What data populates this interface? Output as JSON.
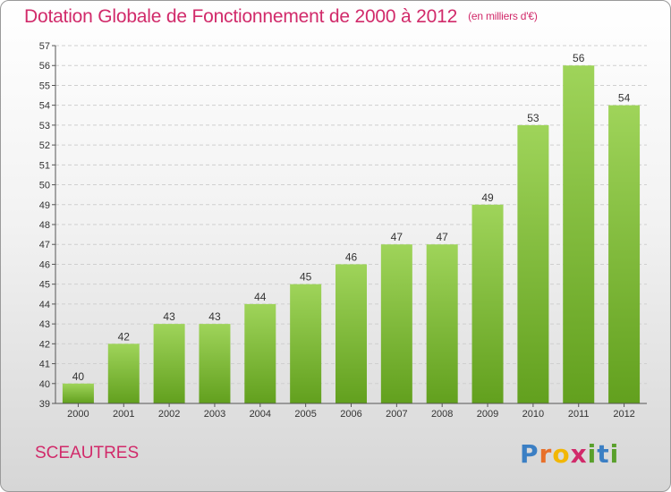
{
  "header": {
    "title": "Dotation Globale de Fonctionnement de 2000 à 2012",
    "unit": "(en milliers d'€)"
  },
  "footer": {
    "commune": "SCEAUTRES",
    "logo": [
      "P",
      "r",
      "o",
      "x",
      "i",
      "t",
      "i"
    ],
    "logo_colors": [
      "#3b7fc4",
      "#e8702a",
      "#f2b705",
      "#d12a6a",
      "#5aa02c",
      "#3b7fc4",
      "#5aa02c"
    ]
  },
  "colors": {
    "bar_top": "#9fd45a",
    "bar_bottom": "#62a01e",
    "grid": "#cfcfcf",
    "axis": "#555555"
  },
  "chart_data": {
    "type": "bar",
    "title": "Dotation Globale de Fonctionnement de 2000 à 2012",
    "xlabel": "",
    "ylabel": "(en milliers d'€)",
    "categories": [
      "2000",
      "2001",
      "2002",
      "2003",
      "2004",
      "2005",
      "2006",
      "2007",
      "2008",
      "2009",
      "2010",
      "2011",
      "2012"
    ],
    "values": [
      40,
      42,
      43,
      43,
      44,
      45,
      46,
      47,
      47,
      49,
      53,
      56,
      54
    ],
    "ylim": [
      39,
      57
    ],
    "yticks": [
      39,
      40,
      41,
      42,
      43,
      44,
      45,
      46,
      47,
      48,
      49,
      50,
      51,
      52,
      53,
      54,
      55,
      56,
      57
    ],
    "grid": true
  }
}
